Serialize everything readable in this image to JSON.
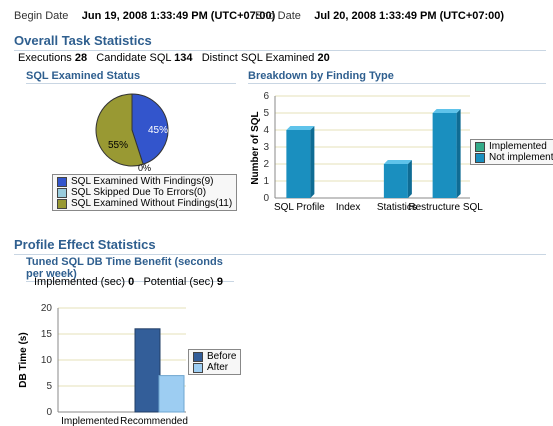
{
  "header": {
    "begin_label": "Begin Date",
    "begin_value": "Jun 19, 2008 1:33:49 PM (UTC+07:00)",
    "end_label": "End Date",
    "end_value": "Jul 20, 2008 1:33:49 PM (UTC+07:00)"
  },
  "task_stats": {
    "title": "Overall Task Statistics",
    "executions_label": "Executions",
    "executions_value": "28",
    "candidate_label": "Candidate SQL",
    "candidate_value": "134",
    "distinct_label": "Distinct SQL Examined",
    "distinct_value": "20"
  },
  "sql_status": {
    "title": "SQL Examined Status",
    "slice_labels": [
      "45%",
      "55%",
      "0%"
    ],
    "legend": [
      "SQL Examined With Findings(9)",
      "SQL Skipped Due To Errors(0)",
      "SQL Examined Without Findings(11)"
    ],
    "colors": [
      "#3355cc",
      "#99ccdd",
      "#999933"
    ]
  },
  "breakdown": {
    "title": "Breakdown by Finding Type",
    "ylabel": "Number of SQL",
    "legend": [
      "Implemented",
      "Not implemented"
    ],
    "colors": {
      "implemented": "#33aa88",
      "not_implemented": "#1a8fbf"
    }
  },
  "profile_stats": {
    "title": "Profile Effect Statistics",
    "subtitle": "Tuned SQL DB Time Benefit (seconds per week)",
    "implemented_label": "Implemented (sec)",
    "implemented_value": "0",
    "potential_label": "Potential (sec)",
    "potential_value": "9",
    "ylabel": "DB Time (s)",
    "legend": [
      "Before",
      "After"
    ],
    "colors": {
      "before": "#335e99",
      "after": "#9dcdf2"
    }
  },
  "chart_data": [
    {
      "type": "pie",
      "title": "SQL Examined Status",
      "categories": [
        "SQL Examined With Findings",
        "SQL Skipped Due To Errors",
        "SQL Examined Without Findings"
      ],
      "values": [
        9,
        0,
        11
      ],
      "percent_labels": [
        "45%",
        "0%",
        "55%"
      ]
    },
    {
      "type": "bar",
      "title": "Breakdown by Finding Type",
      "categories": [
        "SQL Profile",
        "Index",
        "Statistics",
        "Restructure SQL"
      ],
      "series": [
        {
          "name": "Implemented",
          "values": [
            0,
            0,
            0,
            0
          ]
        },
        {
          "name": "Not implemented",
          "values": [
            4,
            0,
            2,
            5
          ]
        }
      ],
      "ylabel": "Number of SQL",
      "ylim": [
        0,
        6
      ],
      "yticks": [
        "0",
        "1",
        "2",
        "3",
        "4",
        "5",
        "6"
      ],
      "grid": true,
      "legend_position": "right"
    },
    {
      "type": "bar",
      "title": "Tuned SQL DB Time Benefit (seconds per week)",
      "categories": [
        "Implemented",
        "Recommended"
      ],
      "series": [
        {
          "name": "Before",
          "values": [
            0,
            16
          ]
        },
        {
          "name": "After",
          "values": [
            0,
            7
          ]
        }
      ],
      "ylabel": "DB Time (s)",
      "ylim": [
        0,
        20
      ],
      "yticks": [
        "0",
        "5",
        "10",
        "15",
        "20"
      ],
      "grid": true,
      "legend_position": "right"
    }
  ]
}
